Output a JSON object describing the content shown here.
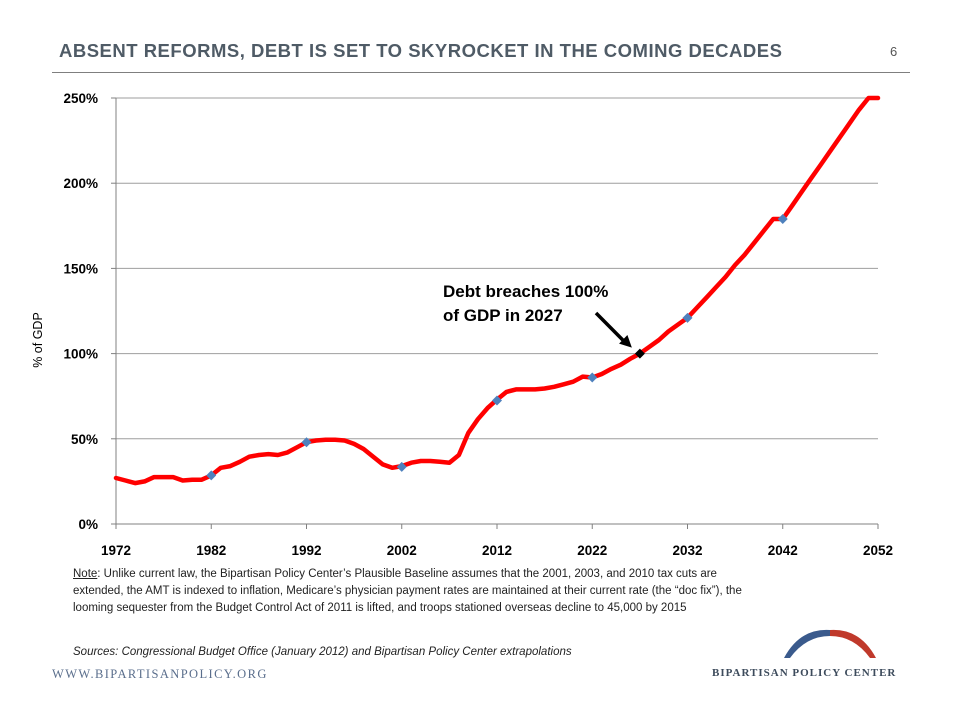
{
  "header": {
    "title": "ABSENT REFORMS, DEBT IS SET TO SKYROCKET IN THE COMING DECADES",
    "page_number": "6"
  },
  "chart_data": {
    "type": "line",
    "ylabel": "% of GDP",
    "xlabel": "",
    "xlim": [
      1972,
      2052
    ],
    "ylim": [
      0,
      250
    ],
    "x_ticks": [
      1972,
      1982,
      1992,
      2002,
      2012,
      2022,
      2032,
      2042,
      2052
    ],
    "x_tick_labels": [
      "1972",
      "1982",
      "1992",
      "2002",
      "2012",
      "2022",
      "2032",
      "2042",
      "2052"
    ],
    "y_ticks": [
      0,
      50,
      100,
      150,
      200,
      250
    ],
    "y_tick_labels": [
      "0%",
      "50%",
      "100%",
      "150%",
      "200%",
      "250%"
    ],
    "grid": "horizontal",
    "series": [
      {
        "color": "#ff0000",
        "x": [
          1972,
          1973,
          1974,
          1975,
          1976,
          1977,
          1978,
          1979,
          1980,
          1981,
          1982,
          1983,
          1984,
          1985,
          1986,
          1987,
          1988,
          1989,
          1990,
          1991,
          1992,
          1993,
          1994,
          1995,
          1996,
          1997,
          1998,
          1999,
          2000,
          2001,
          2002,
          2003,
          2004,
          2005,
          2006,
          2007,
          2008,
          2009,
          2010,
          2011,
          2012,
          2013,
          2014,
          2015,
          2016,
          2017,
          2018,
          2019,
          2020,
          2021,
          2022,
          2023,
          2024,
          2025,
          2026,
          2027,
          2028,
          2029,
          2030,
          2031,
          2032,
          2033,
          2034,
          2035,
          2036,
          2037,
          2038,
          2039,
          2040,
          2041,
          2042,
          2043,
          2044,
          2045,
          2046,
          2047,
          2048,
          2049,
          2050,
          2051,
          2052
        ],
        "values": [
          27,
          25.5,
          24,
          25,
          27.5,
          27.5,
          27.5,
          25.5,
          26,
          26,
          28.5,
          33,
          34,
          36.5,
          39.5,
          40.5,
          41,
          40.5,
          42,
          45,
          48,
          49,
          49.5,
          49.5,
          49,
          47,
          44,
          39.5,
          35,
          33,
          34,
          36,
          37,
          37,
          36.5,
          36,
          40.5,
          53.5,
          61.5,
          68,
          73,
          77.5,
          79,
          79,
          79,
          79.5,
          80.5,
          82,
          83.5,
          86.5,
          86,
          88,
          91,
          93.5,
          97,
          100,
          104,
          108,
          113,
          117,
          121,
          127,
          133,
          139,
          145,
          152,
          158,
          165,
          172,
          179,
          179,
          187,
          195,
          203,
          211,
          219,
          227,
          235,
          243,
          251,
          259
        ]
      }
    ],
    "markers": [
      {
        "x": 1982,
        "y": 28.5,
        "color": "#4f81bd"
      },
      {
        "x": 1992,
        "y": 48,
        "color": "#4f81bd"
      },
      {
        "x": 2002,
        "y": 33.5,
        "color": "#4f81bd"
      },
      {
        "x": 2012,
        "y": 72.5,
        "color": "#4f81bd"
      },
      {
        "x": 2022,
        "y": 86,
        "color": "#4f81bd"
      },
      {
        "x": 2027,
        "y": 100,
        "color": "#000000"
      },
      {
        "x": 2032,
        "y": 121,
        "color": "#4f81bd"
      },
      {
        "x": 2042,
        "y": 179,
        "color": "#4f81bd"
      }
    ],
    "annotation": {
      "line1": "Debt breaches 100%",
      "line2": "of GDP in 2027",
      "points_to_x": 2027,
      "points_to_y": 100
    }
  },
  "note": {
    "label": "Note",
    "text": ": Unlike current law, the Bipartisan Policy Center’s Plausible Baseline assumes that the 2001, 2003, and 2010 tax cuts are extended, the AMT is indexed to inflation, Medicare’s physician payment rates are maintained at their current rate (the “doc fix”), the looming sequester from the Budget Control Act of 2011 is lifted, and troops stationed overseas decline to 45,000 by 2015"
  },
  "sources": "Sources: Congressional Budget Office (January 2012) and Bipartisan Policy Center extrapolations",
  "footer": {
    "website": "WWW.BIPARTISANPOLICY.ORG",
    "logo_text": "BIPARTISAN POLICY CENTER",
    "brand_blue": "#3a5a8c",
    "brand_red": "#c0392b"
  }
}
